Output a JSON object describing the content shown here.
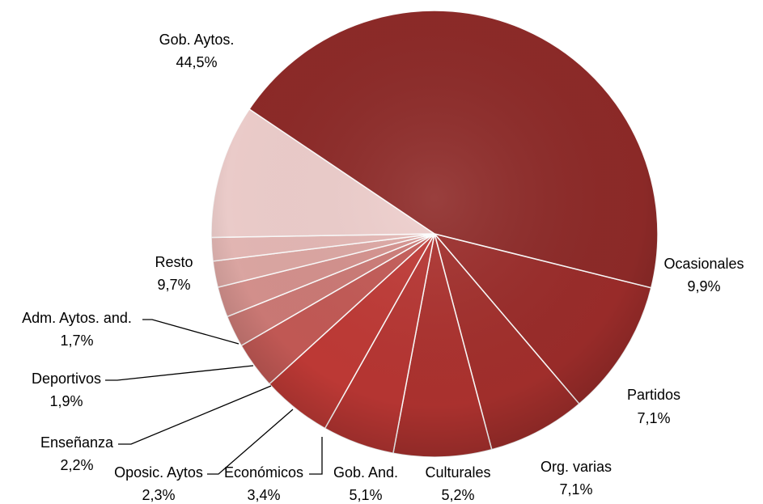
{
  "chart_data": {
    "type": "pie",
    "title": "",
    "start_angle_deg": 14,
    "direction": "clockwise",
    "slices": [
      {
        "label": "Ocasionales",
        "value_text": "9,9%",
        "value": 9.9,
        "color": "#9b2c2a"
      },
      {
        "label": "Partidos",
        "value_text": "7,1%",
        "value": 7.1,
        "color": "#a32f2c"
      },
      {
        "label": "Org. varias",
        "value_text": "7,1%",
        "value": 7.1,
        "color": "#ad322f"
      },
      {
        "label": "Culturales",
        "value_text": "5,2%",
        "value": 5.2,
        "color": "#b83633"
      },
      {
        "label": "Gob. And.",
        "value_text": "5,1%",
        "value": 5.1,
        "color": "#c03a36"
      },
      {
        "label": "Económicos",
        "value_text": "3,4%",
        "value": 3.4,
        "color": "#c45a56"
      },
      {
        "label": "Oposic. Aytos",
        "value_text": "2,3%",
        "value": 2.3,
        "color": "#cd7a76"
      },
      {
        "label": "Enseñanza",
        "value_text": "2,2%",
        "value": 2.2,
        "color": "#d6928e"
      },
      {
        "label": "Deportivos",
        "value_text": "1,9%",
        "value": 1.9,
        "color": "#dea8a4"
      },
      {
        "label": "Adm. Aytos. and.",
        "value_text": "1,7%",
        "value": 1.7,
        "color": "#e6b9b6"
      },
      {
        "label": "Resto",
        "value_text": "9,7%",
        "value": 9.7,
        "color": "#efcfcd"
      },
      {
        "label": "Gob. Aytos.",
        "value_text": "44,5%",
        "value": 44.5,
        "color": "#8e2a28"
      }
    ]
  }
}
